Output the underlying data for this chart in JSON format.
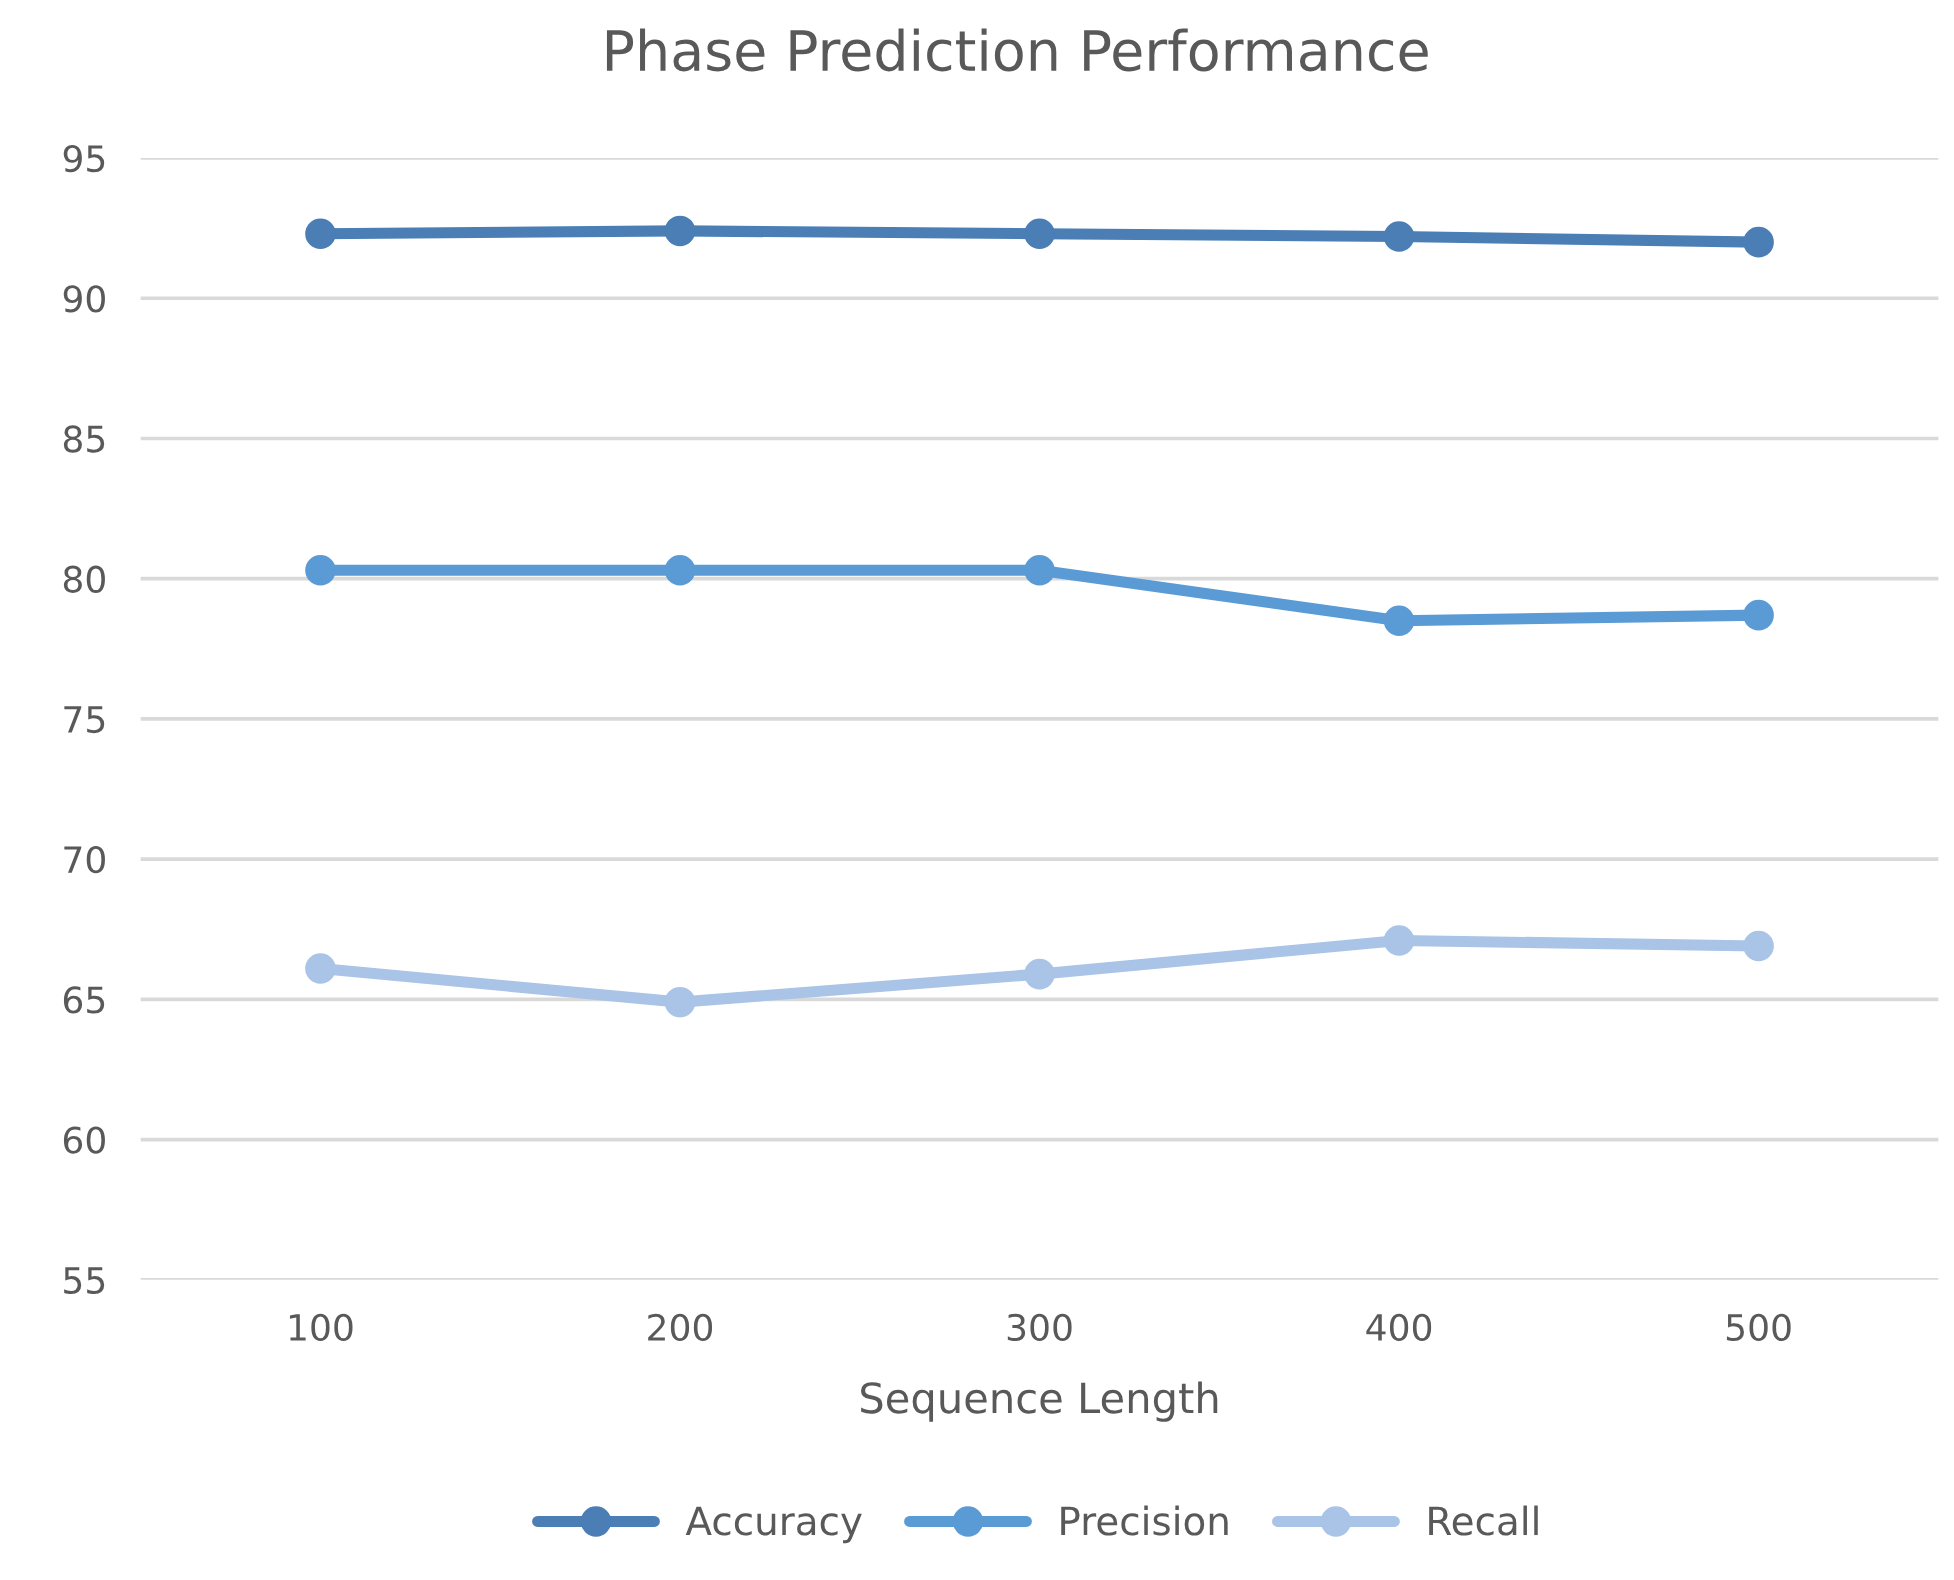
{
  "chart_data": {
    "type": "line",
    "title": "Phase Prediction Performance",
    "xlabel": "Sequence Length",
    "categories": [
      "100",
      "200",
      "300",
      "400",
      "500"
    ],
    "series": [
      {
        "name": "Accuracy",
        "color": "#4a7eb5",
        "values": [
          92.3,
          92.4,
          92.3,
          92.2,
          92.0
        ]
      },
      {
        "name": "Precision",
        "color": "#5b9bd5",
        "values": [
          80.3,
          80.3,
          80.3,
          78.5,
          78.7
        ]
      },
      {
        "name": "Recall",
        "color": "#a9c4e6",
        "values": [
          66.1,
          64.9,
          65.9,
          67.1,
          66.9
        ]
      }
    ],
    "ylim": [
      55,
      95
    ],
    "yticks": [
      55,
      60,
      65,
      70,
      75,
      80,
      85,
      90,
      95
    ],
    "grid": "y",
    "legend": "bottom",
    "marker": "circle",
    "line_style": "solid"
  }
}
